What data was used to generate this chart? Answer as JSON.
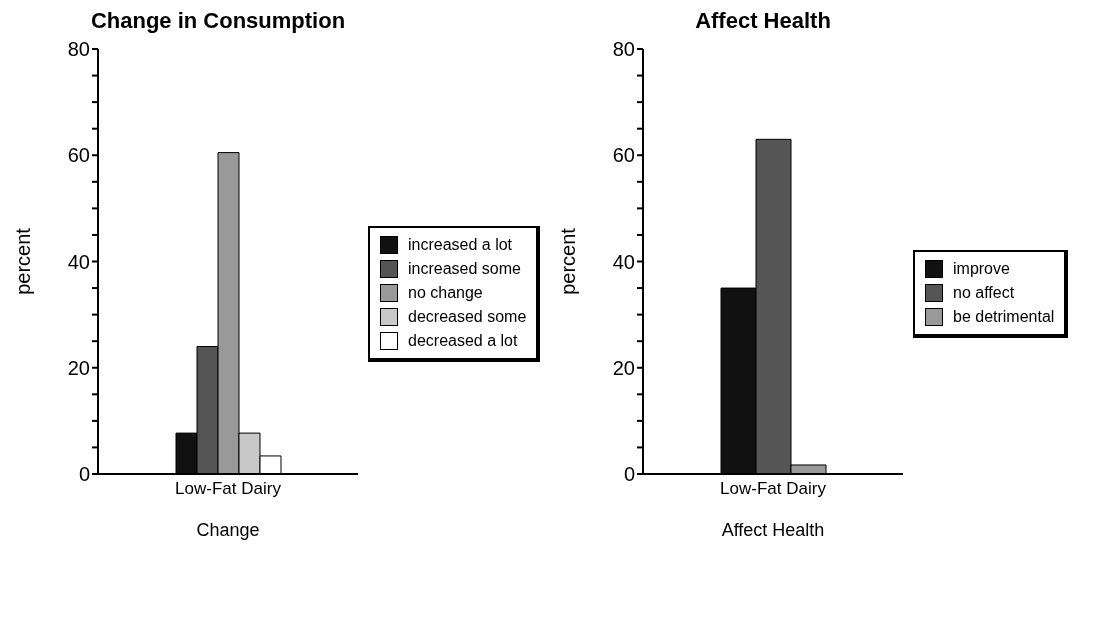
{
  "chart_data": [
    {
      "type": "bar",
      "title": "Change in Consumption",
      "xlabel": "Change",
      "ylabel": "percent",
      "categories": [
        "Low-Fat Dairy"
      ],
      "series": [
        {
          "name": "increased a lot",
          "color": "#111111",
          "values": [
            7.7
          ]
        },
        {
          "name": "increased some",
          "color": "#555555",
          "values": [
            24
          ]
        },
        {
          "name": "no change",
          "color": "#999999",
          "values": [
            60.5
          ]
        },
        {
          "name": "decreased some",
          "color": "#c8c8c8",
          "values": [
            7.7
          ]
        },
        {
          "name": "decreased a lot",
          "color": "#ffffff",
          "values": [
            3.4
          ]
        }
      ],
      "ylim": [
        0,
        80
      ],
      "yticks": [
        0,
        {
          "value": 5,
          "label": null
        },
        {
          "value": 10,
          "label": null
        },
        {
          "value": 15,
          "label": null
        },
        20,
        {
          "value": 25,
          "label": null
        },
        {
          "value": 30,
          "label": null
        },
        {
          "value": 35,
          "label": null
        },
        40,
        {
          "value": 45,
          "label": null
        },
        {
          "value": 50,
          "label": null
        },
        {
          "value": 55,
          "label": null
        },
        60,
        {
          "value": 65,
          "label": null
        },
        {
          "value": 70,
          "label": null
        },
        {
          "value": 75,
          "label": null
        },
        80
      ],
      "grid": false,
      "legend": "right"
    },
    {
      "type": "bar",
      "title": "Affect Health",
      "xlabel": "Affect Health",
      "ylabel": "percent",
      "categories": [
        "Low-Fat Dairy"
      ],
      "series": [
        {
          "name": "improve",
          "color": "#111111",
          "values": [
            35
          ]
        },
        {
          "name": "no affect",
          "color": "#555555",
          "values": [
            63
          ]
        },
        {
          "name": "be detrimental",
          "color": "#999999",
          "values": [
            1.7
          ]
        }
      ],
      "ylim": [
        0,
        80
      ],
      "yticks": [
        0,
        {
          "value": 5,
          "label": null
        },
        {
          "value": 10,
          "label": null
        },
        {
          "value": 15,
          "label": null
        },
        20,
        {
          "value": 25,
          "label": null
        },
        {
          "value": 30,
          "label": null
        },
        {
          "value": 35,
          "label": null
        },
        40,
        {
          "value": 45,
          "label": null
        },
        {
          "value": 50,
          "label": null
        },
        {
          "value": 55,
          "label": null
        },
        60,
        {
          "value": 65,
          "label": null
        },
        {
          "value": 70,
          "label": null
        },
        {
          "value": 75,
          "label": null
        },
        80
      ],
      "grid": false,
      "legend": "right"
    }
  ]
}
